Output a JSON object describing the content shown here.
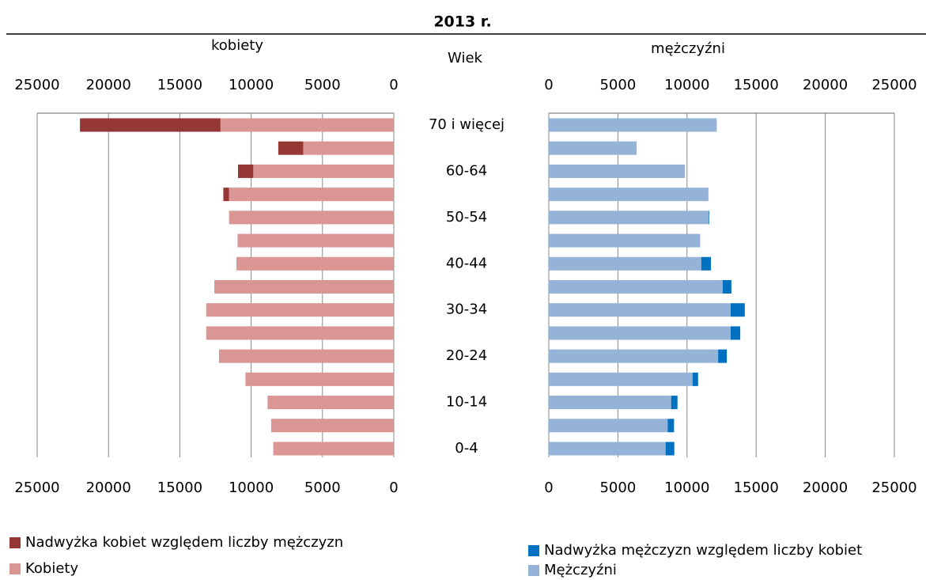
{
  "chart_data": {
    "type": "bar",
    "orientation": "horizontal",
    "title": "2013 r.",
    "left_label": "kobiety",
    "right_label": "mężczyźni",
    "center_label": "Wiek",
    "categories": [
      "70 i więcej",
      null,
      "60-64",
      null,
      "50-54",
      null,
      "40-44",
      null,
      "30-34",
      null,
      "20-24",
      null,
      "10-14",
      null,
      "0-4"
    ],
    "series": [
      {
        "name": "Nadwyżka kobiet względem liczby mężczyzn",
        "color": "#953735",
        "side": "left",
        "values": [
          9850,
          1750,
          1070,
          400,
          0,
          0,
          0,
          0,
          0,
          0,
          0,
          0,
          0,
          0,
          0
        ]
      },
      {
        "name": "Kobiety",
        "color": "#d99694",
        "side": "left",
        "values": [
          12150,
          6350,
          9850,
          11550,
          11550,
          10950,
          11030,
          12580,
          13150,
          13150,
          12250,
          10400,
          8850,
          8600,
          8450
        ]
      },
      {
        "name": "Nadwyżka mężczyzn względem liczby kobiet",
        "color": "#0070c0",
        "side": "right",
        "values": [
          0,
          0,
          0,
          0,
          50,
          0,
          700,
          630,
          1030,
          700,
          630,
          400,
          460,
          460,
          630
        ]
      },
      {
        "name": "Mężczyźni",
        "color": "#95b3d7",
        "side": "right",
        "values": [
          12150,
          6350,
          9850,
          11550,
          11550,
          10950,
          11030,
          12580,
          13150,
          13150,
          12250,
          10400,
          8850,
          8600,
          8450
        ]
      }
    ],
    "xlim": [
      0,
      25000
    ],
    "xticks": [
      0,
      5000,
      10000,
      15000,
      20000,
      25000
    ],
    "grid": true
  }
}
